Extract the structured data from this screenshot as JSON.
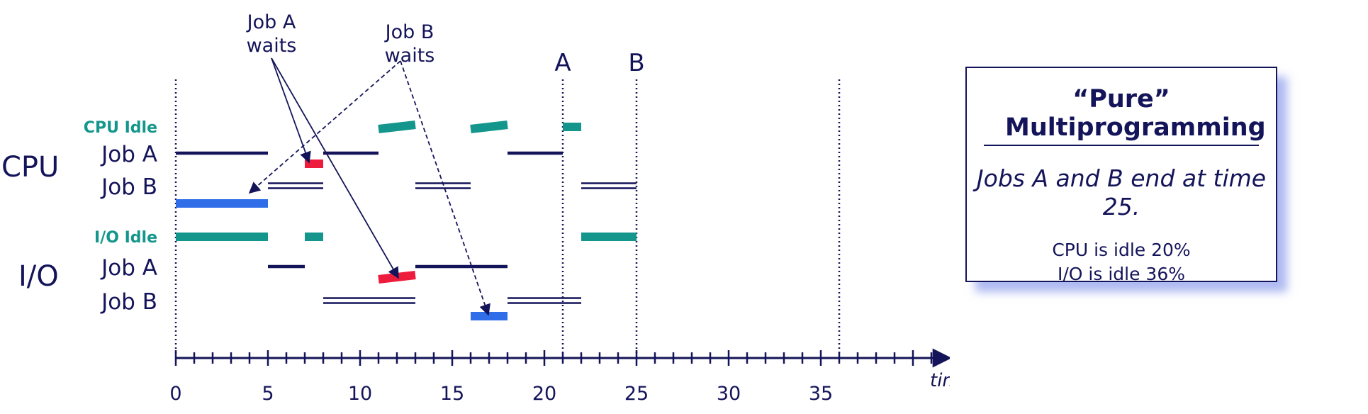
{
  "diagram": {
    "time_axis": {
      "label": "time",
      "min": 0,
      "max": 42,
      "tick_step": 1,
      "tick_labels": [
        0,
        5,
        10,
        15,
        20,
        25,
        30,
        35
      ]
    },
    "markers": [
      {
        "time": 0,
        "label": ""
      },
      {
        "time": 21,
        "label": "A"
      },
      {
        "time": 25,
        "label": "B"
      },
      {
        "time": 36,
        "label": ""
      }
    ],
    "groups": [
      {
        "label": "CPU"
      },
      {
        "label": "I/O"
      }
    ],
    "rows": [
      {
        "key": "cpu_idle",
        "group": "CPU",
        "label": "CPU Idle",
        "style": "idle"
      },
      {
        "key": "cpu_a",
        "group": "CPU",
        "label": "Job A",
        "style": "job"
      },
      {
        "key": "cpu_b",
        "group": "CPU",
        "label": "Job B",
        "style": "job"
      },
      {
        "key": "io_idle",
        "group": "I/O",
        "label": "I/O Idle",
        "style": "idle"
      },
      {
        "key": "io_a",
        "group": "I/O",
        "label": "Job A",
        "style": "job"
      },
      {
        "key": "io_b",
        "group": "I/O",
        "label": "Job B",
        "style": "job"
      }
    ],
    "segments": [
      {
        "row": "cpu_idle",
        "start": 11,
        "end": 13,
        "kind": "idle"
      },
      {
        "row": "cpu_idle",
        "start": 16,
        "end": 18,
        "kind": "idle"
      },
      {
        "row": "cpu_idle",
        "start": 21,
        "end": 22,
        "kind": "idle"
      },
      {
        "row": "cpu_a",
        "start": 0,
        "end": 5,
        "kind": "run"
      },
      {
        "row": "cpu_a",
        "start": 8,
        "end": 11,
        "kind": "run"
      },
      {
        "row": "cpu_a",
        "start": 18,
        "end": 21,
        "kind": "run"
      },
      {
        "row": "cpu_a",
        "start": 7,
        "end": 8,
        "kind": "wait_a"
      },
      {
        "row": "cpu_b",
        "start": 5,
        "end": 8,
        "kind": "run_double"
      },
      {
        "row": "cpu_b",
        "start": 13,
        "end": 16,
        "kind": "run_double"
      },
      {
        "row": "cpu_b",
        "start": 22,
        "end": 25,
        "kind": "run_double"
      },
      {
        "row": "cpu_b",
        "start": 0,
        "end": 5,
        "kind": "wait_b"
      },
      {
        "row": "io_idle",
        "start": 0,
        "end": 5,
        "kind": "idle"
      },
      {
        "row": "io_idle",
        "start": 7,
        "end": 8,
        "kind": "idle"
      },
      {
        "row": "io_idle",
        "start": 22,
        "end": 25,
        "kind": "idle"
      },
      {
        "row": "io_a",
        "start": 5,
        "end": 7,
        "kind": "run"
      },
      {
        "row": "io_a",
        "start": 13,
        "end": 18,
        "kind": "run"
      },
      {
        "row": "io_a",
        "start": 11,
        "end": 13,
        "kind": "wait_a"
      },
      {
        "row": "io_b",
        "start": 8,
        "end": 13,
        "kind": "run_double"
      },
      {
        "row": "io_b",
        "start": 18,
        "end": 22,
        "kind": "run_double"
      },
      {
        "row": "io_b",
        "start": 16,
        "end": 18,
        "kind": "wait_b"
      }
    ],
    "annotations": [
      {
        "lines": [
          "Job A",
          "waits"
        ],
        "arrows": [
          {
            "to_row": "cpu_a",
            "to_time": 7.5,
            "dashed": false
          },
          {
            "to_row": "io_a",
            "to_time": 12,
            "dashed": false
          }
        ]
      },
      {
        "lines": [
          "Job B",
          "waits"
        ],
        "arrows": [
          {
            "to_row": "cpu_b",
            "to_time": 4,
            "dashed": true
          },
          {
            "to_row": "io_b",
            "to_time": 17,
            "dashed": true
          }
        ]
      }
    ],
    "colors": {
      "ink": "#14145a",
      "idle": "#14968c",
      "wait_a": "#ee1c3c",
      "wait_b": "#2f6ee8",
      "shadow": "#6e82e6"
    }
  },
  "summary_box": {
    "title_line1": "“Pure”",
    "title_line2": "Multiprogramming",
    "statement": "Jobs A and B end at time 25.",
    "stats": [
      "CPU is idle 20%",
      "I/O is idle 36%"
    ]
  }
}
